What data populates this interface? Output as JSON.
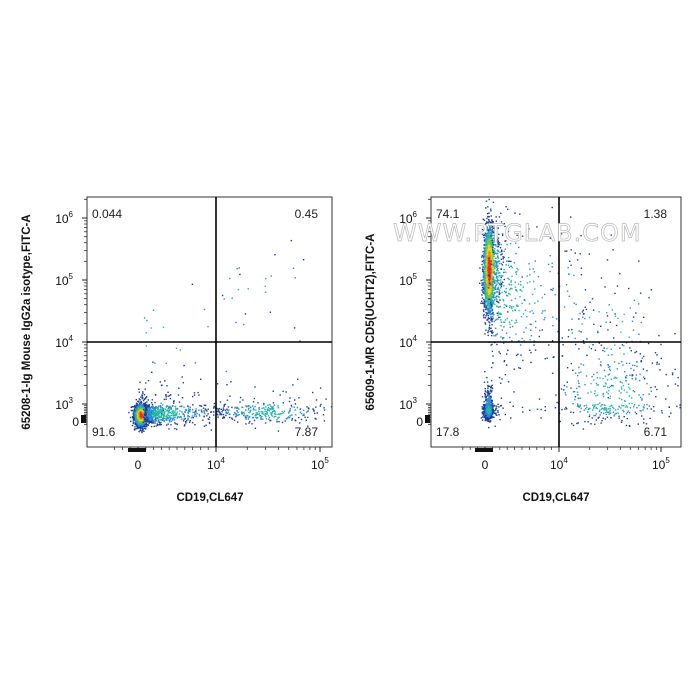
{
  "watermark": "WWW.PTGLAB.COM",
  "chart_data": [
    {
      "type": "scatter",
      "subtype": "flow-cytometry-density-dot-plot",
      "xlabel": "CD19,CL647",
      "ylabel": "65208-1-Ig Mouse IgG2a isotype,FITC-A",
      "x_scale": "biexponential",
      "y_scale": "biexponential",
      "x_ticks": [
        {
          "value": 0,
          "base": "0",
          "exp": ""
        },
        {
          "value": 10000,
          "base": "10",
          "exp": "4"
        },
        {
          "value": 100000,
          "base": "10",
          "exp": "5"
        }
      ],
      "y_ticks": [
        {
          "value": 0,
          "base": "0",
          "exp": ""
        },
        {
          "value": 1000,
          "base": "10",
          "exp": "3"
        },
        {
          "value": 10000,
          "base": "10",
          "exp": "4"
        },
        {
          "value": 100000,
          "base": "10",
          "exp": "5"
        },
        {
          "value": 1000000,
          "base": "10",
          "exp": "6"
        }
      ],
      "gate": {
        "x": 10000,
        "y": 10000
      },
      "quadrants": [
        {
          "position": "upper-left",
          "value": "0.044"
        },
        {
          "position": "upper-right",
          "value": "0.45"
        },
        {
          "position": "lower-left",
          "value": "91.6"
        },
        {
          "position": "lower-right",
          "value": "7.87"
        }
      ],
      "populations": [
        {
          "x": 300,
          "y": 380,
          "sx": 0.42,
          "sy": 0.3,
          "count": 2100,
          "dense": true
        },
        {
          "x": 3000,
          "y": 500,
          "sx": 0.32,
          "sy": 0.38,
          "count": 550,
          "dense": false
        },
        {
          "x": 30000,
          "y": 550,
          "sx": 0.28,
          "sy": 0.32,
          "count": 300,
          "dense": false
        },
        {
          "x": 25000,
          "y": 90000,
          "sx": 0.3,
          "sy": 0.3,
          "count": 18,
          "dense": false
        },
        {
          "x": 3000,
          "y": 12000,
          "sx": 0.7,
          "sy": 0.5,
          "count": 25,
          "dense": false
        }
      ]
    },
    {
      "type": "scatter",
      "subtype": "flow-cytometry-density-dot-plot",
      "xlabel": "CD19,CL647",
      "ylabel": "65609-1-MR CD5(UCHT2),FITC-A",
      "x_scale": "biexponential",
      "y_scale": "biexponential",
      "x_ticks": [
        {
          "value": 0,
          "base": "0",
          "exp": ""
        },
        {
          "value": 10000,
          "base": "10",
          "exp": "4"
        },
        {
          "value": 100000,
          "base": "10",
          "exp": "5"
        }
      ],
      "y_ticks": [
        {
          "value": 0,
          "base": "0",
          "exp": ""
        },
        {
          "value": 1000,
          "base": "10",
          "exp": "3"
        },
        {
          "value": 10000,
          "base": "10",
          "exp": "4"
        },
        {
          "value": 100000,
          "base": "10",
          "exp": "5"
        },
        {
          "value": 1000000,
          "base": "10",
          "exp": "6"
        }
      ],
      "gate": {
        "x": 10000,
        "y": 10000
      },
      "quadrants": [
        {
          "position": "upper-left",
          "value": "74.1"
        },
        {
          "position": "upper-right",
          "value": "1.38"
        },
        {
          "position": "lower-left",
          "value": "17.8"
        },
        {
          "position": "lower-right",
          "value": "6.71"
        }
      ],
      "populations": [
        {
          "x": 500,
          "y": 150000,
          "sx": 0.38,
          "sy": 0.35,
          "count": 2100,
          "dense": true
        },
        {
          "x": 3000,
          "y": 60000,
          "sx": 0.5,
          "sy": 0.6,
          "count": 400,
          "dense": false
        },
        {
          "x": 400,
          "y": 700,
          "sx": 0.35,
          "sy": 0.32,
          "count": 650,
          "dense": false
        },
        {
          "x": 30000,
          "y": 1200,
          "sx": 0.3,
          "sy": 0.55,
          "count": 380,
          "dense": false
        },
        {
          "x": 30000,
          "y": 15000,
          "sx": 0.3,
          "sy": 0.5,
          "count": 60,
          "dense": false
        }
      ]
    }
  ]
}
